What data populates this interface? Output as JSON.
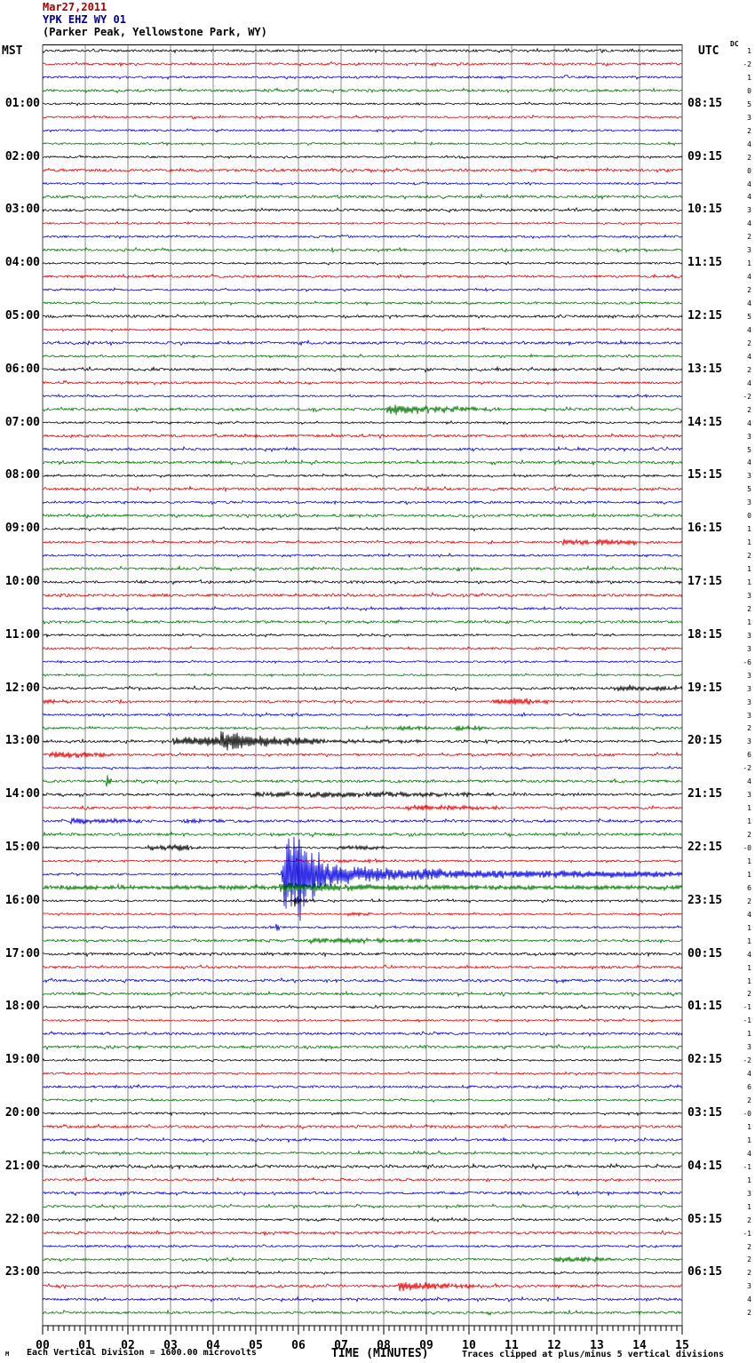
{
  "header": {
    "date": "Mar27,2011",
    "station_line": "YPK EHZ WY 01",
    "location_line": "(Parker Peak, Yellowstone Park, WY)"
  },
  "left_axis": {
    "timezone": "MST",
    "hour_labels": [
      "01:00",
      "02:00",
      "03:00",
      "04:00",
      "05:00",
      "06:00",
      "07:00",
      "08:00",
      "09:00",
      "10:00",
      "11:00",
      "12:00",
      "13:00",
      "14:00",
      "15:00",
      "16:00",
      "17:00",
      "18:00",
      "19:00",
      "20:00",
      "21:00",
      "22:00",
      "23:00"
    ]
  },
  "right_axis": {
    "timezone": "UTC",
    "dc_label": "DC",
    "hour_labels": [
      "08:15",
      "09:15",
      "10:15",
      "11:15",
      "12:15",
      "13:15",
      "14:15",
      "15:15",
      "16:15",
      "17:15",
      "18:15",
      "19:15",
      "20:15",
      "21:15",
      "22:15",
      "23:15",
      "00:15",
      "01:15",
      "02:15",
      "03:15",
      "04:15",
      "05:15",
      "06:15"
    ],
    "dc_values": [
      "1",
      "-2",
      "1",
      "0",
      "5",
      "3",
      "2",
      "4",
      "2",
      "0",
      "4",
      "4",
      "3",
      "4",
      "2",
      "3",
      "1",
      "4",
      "2",
      "4",
      "5",
      "4",
      "2",
      "4",
      "2",
      "4",
      "-2",
      "2",
      "4",
      "3",
      "5",
      "4",
      "3",
      "5",
      "3",
      "0",
      "1",
      "1",
      "2",
      "1",
      "1",
      "3",
      "2",
      "1",
      "3",
      "3",
      "-6",
      "3",
      "3",
      "3",
      "3",
      "2",
      "3",
      "6",
      "-2",
      "4",
      "3",
      "1",
      "1",
      "2",
      "-0",
      "1",
      "1",
      "6",
      "2",
      "4",
      "1",
      "1",
      "4",
      "1",
      "1",
      "2",
      "-1",
      "-1",
      "1",
      "3",
      "-2",
      "4",
      "6",
      "2",
      "-0",
      "1",
      "1",
      "4",
      "-1",
      "1",
      "3",
      "1",
      "2",
      "-1",
      "2",
      "2",
      "2",
      "3",
      "4",
      "2"
    ]
  },
  "footer": {
    "corner_mark": "M",
    "scale_note": "Each Vertical Division = 1600.00 microvolts",
    "axis_title": "TIME (MINUTES)",
    "clip_note": "Traces clipped at plus/minus 5 vertical divisions"
  },
  "chart_data": {
    "type": "line",
    "subtype": "helicorder-seismogram",
    "title": "YPK EHZ WY 01 (Parker Peak, Yellowstone Park, WY) Mar27,2011",
    "rows": 96,
    "minutes_per_row": 15,
    "row_order": "top row starts 00:00 MST (07:15 UTC label convention), each row is 15 minutes",
    "trace_color_cycle": [
      "#000000",
      "#e60000",
      "#0000e0",
      "#007700"
    ],
    "grid": "vertical gray line every 1 minute",
    "xlabel": "TIME (MINUTES)",
    "x_range": [
      0,
      15
    ],
    "x_tick_labels": [
      "00",
      "01",
      "02",
      "03",
      "04",
      "05",
      "06",
      "07",
      "08",
      "09",
      "10",
      "11",
      "12",
      "13",
      "14",
      "15"
    ],
    "scale_note": "Each Vertical Division = 1600.00 microvolts",
    "clip_note": "Traces clipped at plus/minus 5 vertical divisions",
    "dc_offsets_per_row": [
      1,
      -2,
      1,
      0,
      5,
      3,
      2,
      4,
      2,
      0,
      4,
      4,
      3,
      4,
      2,
      3,
      1,
      4,
      2,
      4,
      5,
      4,
      2,
      4,
      2,
      4,
      -2,
      2,
      4,
      3,
      5,
      4,
      3,
      5,
      3,
      0,
      1,
      1,
      2,
      1,
      1,
      3,
      2,
      1,
      3,
      3,
      -6,
      3,
      3,
      3,
      3,
      2,
      3,
      6,
      -2,
      4,
      3,
      1,
      1,
      2,
      0,
      1,
      1,
      6,
      2,
      4,
      1,
      1,
      4,
      1,
      1,
      2,
      -1,
      -1,
      1,
      3,
      -2,
      4,
      6,
      2,
      0,
      1,
      1,
      4,
      -1,
      1,
      3,
      1,
      2,
      -1,
      2,
      2,
      2,
      3,
      4,
      2
    ],
    "events": [
      {
        "row": 27,
        "trace_start_mst": "06:45",
        "color": "green",
        "start_min": 8.1,
        "end_min": 10.8,
        "size": "small burst"
      },
      {
        "row": 37,
        "trace_start_mst": "09:15",
        "color": "red",
        "start_min": 12.2,
        "end_min": 13.9,
        "size": "small double burst"
      },
      {
        "row": 48,
        "trace_start_mst": "12:00",
        "color": "black",
        "start_min": 13.4,
        "end_min": 15.0,
        "size": "small"
      },
      {
        "row": 49,
        "trace_start_mst": "12:15",
        "color": "red",
        "start_min": 10.6,
        "end_min": 12.0,
        "size": "small"
      },
      {
        "row": 51,
        "trace_start_mst": "12:45",
        "color": "green",
        "start_min": 9.7,
        "end_min": 10.4,
        "size": "small"
      },
      {
        "row": 52,
        "trace_start_mst": "13:00",
        "color": "black",
        "start_min": 3.1,
        "end_min": 6.7,
        "size": "moderate local event"
      },
      {
        "row": 53,
        "trace_start_mst": "13:15",
        "color": "red",
        "start_min": 0.2,
        "end_min": 1.8,
        "size": "small"
      },
      {
        "row": 55,
        "trace_start_mst": "13:45",
        "color": "green",
        "start_min": 1.55,
        "end_min": 1.6,
        "size": "spike"
      },
      {
        "row": 56,
        "trace_start_mst": "14:00",
        "color": "black",
        "start_min": 5.0,
        "end_min": 10.6,
        "size": "small extended"
      },
      {
        "row": 57,
        "trace_start_mst": "14:15",
        "color": "red",
        "start_min": 8.6,
        "end_min": 10.8,
        "size": "small"
      },
      {
        "row": 58,
        "trace_start_mst": "14:30",
        "color": "blue",
        "start_min": 0.7,
        "end_min": 2.3,
        "size": "small"
      },
      {
        "row": 60,
        "trace_start_mst": "15:00",
        "color": "black",
        "start_min": 2.5,
        "end_min": 3.6,
        "size": "small"
      },
      {
        "row": 62,
        "trace_start_mst": "15:30",
        "color": "blue",
        "start_min": 5.6,
        "end_min": 15.0,
        "size": "large clipped event, onset ~15:35 MST, coda decays through row"
      },
      {
        "row": 63,
        "trace_start_mst": "15:45",
        "color": "green",
        "start_min": 0.0,
        "end_min": 15.0,
        "size": "elevated coda of large event"
      },
      {
        "row": 64,
        "trace_start_mst": "16:00",
        "color": "black",
        "start_min": 5.9,
        "end_min": 6.4,
        "size": "spike aftershock"
      },
      {
        "row": 67,
        "trace_start_mst": "16:45",
        "color": "green",
        "start_min": 6.3,
        "end_min": 8.9,
        "size": "small"
      },
      {
        "row": 91,
        "trace_start_mst": "22:45",
        "color": "green",
        "start_min": 12.0,
        "end_min": 13.4,
        "size": "small"
      },
      {
        "row": 93,
        "trace_start_mst": "23:15",
        "color": "red",
        "start_min": 8.4,
        "end_min": 10.3,
        "size": "small-moderate"
      }
    ],
    "event_segments": [
      [
        27,
        8.05,
        8.2,
        2,
        6
      ],
      [
        27,
        8.2,
        9.1,
        5.5,
        3
      ],
      [
        27,
        9.1,
        10.8,
        3,
        1
      ],
      [
        37,
        12.2,
        12.8,
        3,
        2
      ],
      [
        37,
        13.0,
        13.9,
        3.5,
        1.5
      ],
      [
        48,
        13.4,
        15,
        2.5,
        2.2
      ],
      [
        49,
        0.0,
        0.6,
        2.5,
        1
      ],
      [
        49,
        10.55,
        11.05,
        1.5,
        4
      ],
      [
        49,
        11.05,
        11.95,
        4,
        1.2
      ],
      [
        51,
        8.3,
        9.2,
        2,
        1.5
      ],
      [
        51,
        9.7,
        10.4,
        3,
        1.5
      ],
      [
        52,
        3.05,
        4.15,
        3.5,
        6
      ],
      [
        52,
        4.15,
        4.7,
        13,
        8
      ],
      [
        52,
        4.7,
        6.7,
        7,
        2
      ],
      [
        52,
        6.7,
        9.0,
        1.5,
        0.8
      ],
      [
        53,
        0.15,
        0.9,
        4,
        3
      ],
      [
        53,
        0.9,
        1.8,
        3,
        1
      ],
      [
        55,
        1.5,
        1.62,
        7,
        7
      ],
      [
        56,
        5.0,
        7.6,
        2.2,
        2.6
      ],
      [
        56,
        7.6,
        8.6,
        3.2,
        2
      ],
      [
        56,
        8.6,
        10.6,
        2,
        1
      ],
      [
        57,
        8.55,
        9.4,
        2.4,
        2.6
      ],
      [
        57,
        9.4,
        10.8,
        2.2,
        1
      ],
      [
        58,
        0.65,
        1.3,
        3,
        2.2
      ],
      [
        58,
        1.3,
        2.3,
        2.2,
        1
      ],
      [
        58,
        3.3,
        4.4,
        1.8,
        0.8
      ],
      [
        60,
        2.45,
        3.1,
        2.4,
        2
      ],
      [
        60,
        3.1,
        3.55,
        4.5,
        2.4
      ],
      [
        60,
        6.9,
        8.1,
        2.2,
        1.2
      ],
      [
        61,
        6.8,
        8.2,
        1.5,
        1.1
      ],
      [
        62,
        5.6,
        5.68,
        6,
        46
      ],
      [
        62,
        5.68,
        6.5,
        46,
        26
      ],
      [
        62,
        6.5,
        7.6,
        15,
        9
      ],
      [
        62,
        7.6,
        9.5,
        8,
        5
      ],
      [
        62,
        9.5,
        15,
        4.5,
        3
      ],
      [
        63,
        0,
        5.55,
        1.9,
        1.9
      ],
      [
        63,
        5.55,
        6.6,
        5.5,
        4.2
      ],
      [
        63,
        6.6,
        8.6,
        4,
        2.5
      ],
      [
        63,
        8.6,
        15,
        2.4,
        1.8
      ],
      [
        64,
        5.78,
        6.4,
        1.8,
        1.2
      ],
      [
        64,
        5.9,
        6.0,
        8,
        8
      ],
      [
        65,
        7.15,
        7.7,
        2,
        1.4
      ],
      [
        66,
        5.46,
        5.56,
        4.5,
        4.5
      ],
      [
        67,
        6.25,
        7.3,
        2.8,
        2.2
      ],
      [
        67,
        7.3,
        8.9,
        2.2,
        1.2
      ],
      [
        91,
        12.0,
        12.55,
        2.5,
        3
      ],
      [
        91,
        12.55,
        13.4,
        3,
        1.4
      ],
      [
        93,
        8.35,
        9.2,
        5,
        3
      ],
      [
        93,
        9.2,
        10.3,
        2.5,
        1.1
      ]
    ]
  }
}
